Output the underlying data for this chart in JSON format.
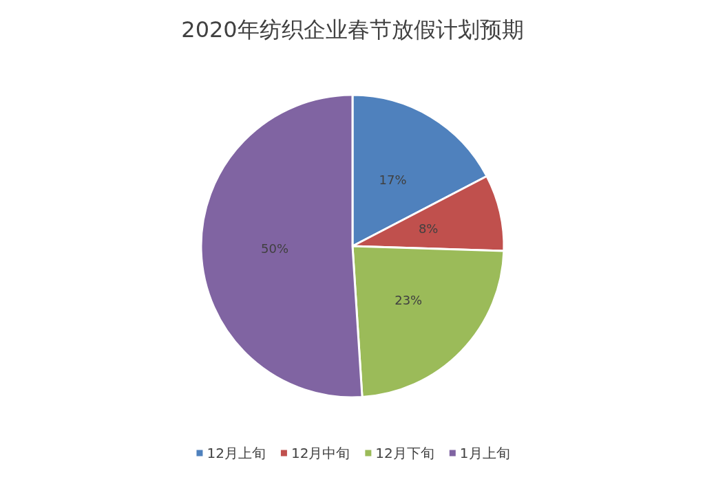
{
  "chart_data": {
    "type": "pie",
    "title": "2020年纺织企业春节放假计划预期",
    "categories": [
      "12月上旬",
      "12月中旬",
      "12月下旬",
      "1月上旬"
    ],
    "values": [
      17,
      8,
      23,
      50
    ],
    "value_labels": [
      "17%",
      "8%",
      "23%",
      "50%"
    ],
    "colors": [
      "#4f81bd",
      "#c0504d",
      "#9bbb59",
      "#8064a2"
    ],
    "legend": "bottom"
  }
}
